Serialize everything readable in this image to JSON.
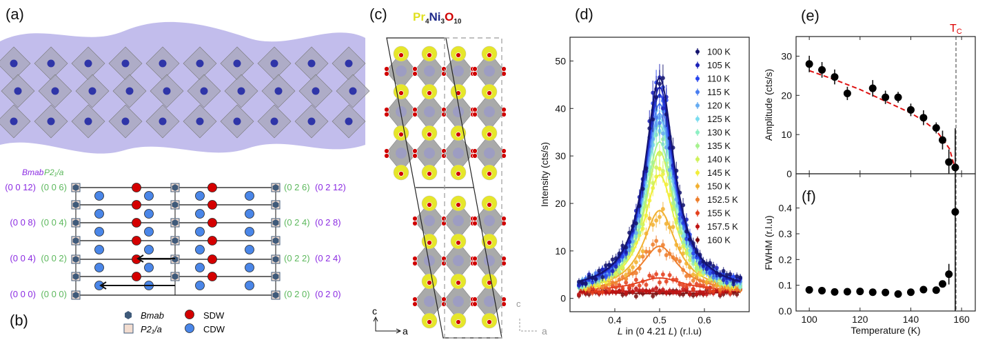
{
  "colors": {
    "purple": "#8b2be2",
    "green": "#5cb85c",
    "sdw": "#d40000",
    "cdw": "#4a86e8",
    "bmab": "#3f5a7a",
    "p21a": "#f3ddd0",
    "pr": "#e8e830",
    "ni": "#1f2a8a",
    "o": "#d00000",
    "tc": "#dd0000"
  },
  "panel_a": {
    "label": "(a)"
  },
  "panel_b": {
    "label": "(b)",
    "header_bmab": "Bmab",
    "header_p21a": "P2₁/a",
    "left_labels": [
      {
        "bmab": "(0 0 12)",
        "p21a": "(0 0 6)"
      },
      {
        "bmab": "(0 0 8)",
        "p21a": "(0 0 4)"
      },
      {
        "bmab": "(0 0 4)",
        "p21a": "(0 0 2)"
      },
      {
        "bmab": "(0 0 0)",
        "p21a": "(0 0 0)"
      }
    ],
    "right_labels": [
      {
        "p21a": "(0 2 6)",
        "bmab": "(0 2 12)"
      },
      {
        "p21a": "(0 2 4)",
        "bmab": "(0 2 8)"
      },
      {
        "p21a": "(0 2 2)",
        "bmab": "(0 2 4)"
      },
      {
        "p21a": "(0 2 0)",
        "bmab": "(0 2 0)"
      }
    ],
    "legend": {
      "bmab": "Bmab",
      "p21a": "P2₁/a",
      "sdw": "SDW",
      "cdw": "CDW"
    }
  },
  "panel_c": {
    "label": "(c)",
    "formula": [
      {
        "el": "Pr",
        "n": "4"
      },
      {
        "el": "Ni",
        "n": "3"
      },
      {
        "el": "O",
        "n": "10"
      }
    ],
    "axis_c": "c",
    "axis_a": "a",
    "axis_c_dashed": "c",
    "axis_a_dashed": "a"
  },
  "chart_data": [
    {
      "panel": "(d)",
      "type": "scatter",
      "xlabel_parts": [
        "L",
        " in (0 4.21 ",
        "L",
        ") (r.l.u)"
      ],
      "ylabel": "Intensity (cts/s)",
      "xlim": [
        0.3,
        0.7
      ],
      "ylim": [
        -2.8,
        55
      ],
      "xticks": [
        0.4,
        0.5,
        0.6
      ],
      "xtick_labels": [
        "0.4",
        "0.5",
        "0.6"
      ],
      "yticks": [
        0,
        10,
        20,
        30,
        40,
        50
      ],
      "ytick_labels": [
        "0",
        "10",
        "20",
        "30",
        "40",
        "50"
      ],
      "legend_placement": "top-right",
      "fit": {
        "center": 0.5,
        "background": 1.5
      },
      "series": [
        {
          "name": "100 K",
          "peak": 46.5,
          "fwhm": 0.08,
          "color": "#14146e"
        },
        {
          "name": "105 K",
          "peak": 44.5,
          "fwhm": 0.08,
          "color": "#1c22b8"
        },
        {
          "name": "110 K",
          "peak": 43,
          "fwhm": 0.08,
          "color": "#2846ee"
        },
        {
          "name": "115 K",
          "peak": 41,
          "fwhm": 0.08,
          "color": "#4a7ef0"
        },
        {
          "name": "120 K",
          "peak": 39,
          "fwhm": 0.08,
          "color": "#66acf2"
        },
        {
          "name": "125 K",
          "peak": 38,
          "fwhm": 0.08,
          "color": "#7adcef"
        },
        {
          "name": "130 K",
          "peak": 36.5,
          "fwhm": 0.08,
          "color": "#8ef0c4"
        },
        {
          "name": "135 K",
          "peak": 33,
          "fwhm": 0.08,
          "color": "#a6f28e"
        },
        {
          "name": "140 K",
          "peak": 31,
          "fwhm": 0.08,
          "color": "#cff25a"
        },
        {
          "name": "145 K",
          "peak": 26,
          "fwhm": 0.085,
          "color": "#f2ee3a"
        },
        {
          "name": "150 K",
          "peak": 18.5,
          "fwhm": 0.09,
          "color": "#f2b030"
        },
        {
          "name": "152.5 K",
          "peak": 11,
          "fwhm": 0.1,
          "color": "#ee7e2c"
        },
        {
          "name": "155 K",
          "peak": 4.3,
          "fwhm": 0.13,
          "color": "#e4401e"
        },
        {
          "name": "157.5 K",
          "peak": 1.5,
          "fwhm": 0.2,
          "color": "#c01414"
        },
        {
          "name": "160 K",
          "peak": 1.0,
          "fwhm": 0.3,
          "color": "#7e1010"
        }
      ]
    },
    {
      "panel": "(e)",
      "type": "scatter",
      "ylabel": "Amplitude (cts/s)",
      "xlim": [
        94.8,
        165.4
      ],
      "ylim": [
        0,
        35
      ],
      "xticks": [
        100,
        120,
        140,
        160
      ],
      "yticks": [
        0,
        10,
        20,
        30
      ],
      "ytick_labels": [
        "0",
        "10",
        "20",
        "30"
      ],
      "tc_label": "T",
      "tc_sub": "C",
      "tc": 157.8,
      "x": [
        100,
        105,
        110,
        115,
        125,
        130,
        135,
        140,
        145,
        150,
        152.5,
        155,
        157.5
      ],
      "y": [
        28,
        26.5,
        24.7,
        20.5,
        21.8,
        19.5,
        19.5,
        16.3,
        14.3,
        11.7,
        8.6,
        3.0,
        1.6
      ],
      "yerr": [
        2.1,
        2.0,
        1.9,
        1.7,
        2.1,
        1.7,
        1.4,
        1.6,
        1.9,
        1.4,
        2.4,
        3.2,
        10
      ],
      "fit_line": {
        "x": [
          100,
          110,
          120,
          130,
          140,
          145,
          150,
          153,
          155.3,
          156.5,
          157.3
        ],
        "y": [
          26.3,
          24,
          21.5,
          18.5,
          15.5,
          13.5,
          11,
          8.5,
          6.3,
          3.5,
          1.8
        ],
        "color": "#dd1111"
      }
    },
    {
      "panel": "(f)",
      "type": "scatter",
      "xlabel": "Temperature (K)",
      "ylabel": "FWHM (r.l.u)",
      "xlim": [
        94.8,
        165.4
      ],
      "ylim": [
        0,
        0.533
      ],
      "xticks": [
        100,
        120,
        140,
        160
      ],
      "xtick_labels": [
        "100",
        "120",
        "140",
        "160"
      ],
      "yticks": [
        0,
        0.1,
        0.2,
        0.3,
        0.4
      ],
      "ytick_labels": [
        "0.0",
        "0.1",
        "0.2",
        "0.3",
        "0.4"
      ],
      "x": [
        100,
        105,
        110,
        115,
        120,
        125,
        130,
        135,
        140,
        145,
        150,
        152.5,
        155,
        157.5
      ],
      "y": [
        0.082,
        0.079,
        0.074,
        0.075,
        0.076,
        0.073,
        0.072,
        0.066,
        0.073,
        0.083,
        0.081,
        0.105,
        0.143,
        0.385
      ],
      "yerr": [
        0.004,
        0.004,
        0.004,
        0.004,
        0.004,
        0.004,
        0.004,
        0.004,
        0.004,
        0.005,
        0.005,
        0.008,
        0.04,
        0.4
      ]
    }
  ]
}
